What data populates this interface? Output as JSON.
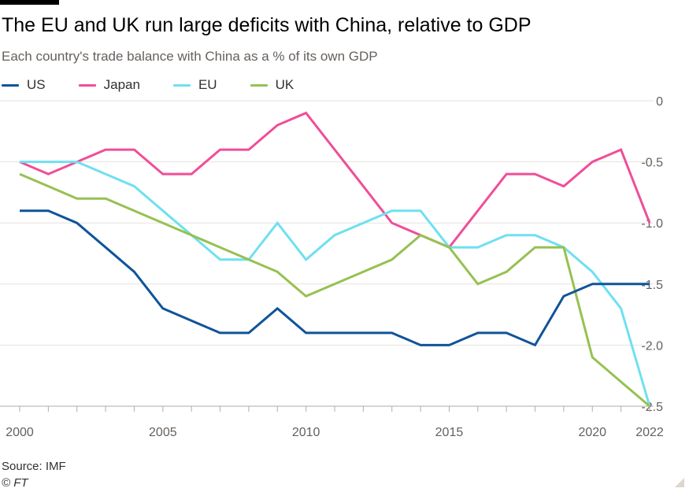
{
  "header": {
    "title": "The EU and UK run large deficits with China, relative to GDP",
    "subtitle": "Each country's trade balance with China as a % of its own GDP"
  },
  "footer": {
    "source": "Source: IMF",
    "credit": "© FT"
  },
  "colors": {
    "US": "#0f5499",
    "Japan": "#f04e98",
    "EU": "#6fe0f0",
    "UK": "#96c152",
    "grid": "#e6e2dd",
    "axis": "#66605c"
  },
  "chart_data": {
    "type": "line",
    "title": "The EU and UK run large deficits with China, relative to GDP",
    "subtitle": "Each country's trade balance with China as a % of its own GDP",
    "xlabel": "",
    "ylabel": "",
    "x": [
      2000,
      2001,
      2002,
      2003,
      2004,
      2005,
      2006,
      2007,
      2008,
      2009,
      2010,
      2011,
      2012,
      2013,
      2014,
      2015,
      2016,
      2017,
      2018,
      2019,
      2020,
      2021,
      2022
    ],
    "xlim": [
      2000,
      2022
    ],
    "ylim": [
      -2.5,
      0
    ],
    "x_tick_labels": [
      {
        "value": 2000,
        "label": "2000"
      },
      {
        "value": 2005,
        "label": "2005"
      },
      {
        "value": 2010,
        "label": "2010"
      },
      {
        "value": 2015,
        "label": "2015"
      },
      {
        "value": 2020,
        "label": "2020"
      },
      {
        "value": 2022,
        "label": "2022"
      }
    ],
    "y_ticks": [
      {
        "value": 0,
        "label": "0"
      },
      {
        "value": -0.5,
        "label": "-0.5"
      },
      {
        "value": -1.0,
        "label": "-1.0"
      },
      {
        "value": -1.5,
        "label": "-1.5"
      },
      {
        "value": -2.0,
        "label": "-2.0"
      },
      {
        "value": -2.5,
        "label": "-2.5"
      }
    ],
    "grid": true,
    "legend_position": "top-left",
    "series": [
      {
        "name": "US",
        "values": [
          -0.9,
          -0.9,
          -1.0,
          -1.2,
          -1.4,
          -1.7,
          -1.8,
          -1.9,
          -1.9,
          -1.7,
          -1.9,
          -1.9,
          -1.9,
          -1.9,
          -2.0,
          -2.0,
          -1.9,
          -1.9,
          -2.0,
          -1.6,
          -1.5,
          -1.5,
          -1.5
        ]
      },
      {
        "name": "Japan",
        "values": [
          -0.5,
          -0.6,
          -0.5,
          -0.4,
          -0.4,
          -0.6,
          -0.6,
          -0.4,
          -0.4,
          -0.2,
          -0.1,
          -0.4,
          -0.7,
          -1.0,
          -1.1,
          -1.2,
          -0.9,
          -0.6,
          -0.6,
          -0.7,
          -0.5,
          -0.4,
          -1.0
        ]
      },
      {
        "name": "EU",
        "values": [
          -0.5,
          -0.5,
          -0.5,
          -0.6,
          -0.7,
          -0.9,
          -1.1,
          -1.3,
          -1.3,
          -1.0,
          -1.3,
          -1.1,
          -1.0,
          -0.9,
          -0.9,
          -1.2,
          -1.2,
          -1.1,
          -1.1,
          -1.2,
          -1.4,
          -1.7,
          -2.5
        ]
      },
      {
        "name": "UK",
        "values": [
          -0.6,
          -0.7,
          -0.8,
          -0.8,
          -0.9,
          -1.0,
          -1.1,
          -1.2,
          -1.3,
          -1.4,
          -1.6,
          -1.5,
          -1.4,
          -1.3,
          -1.1,
          -1.2,
          -1.5,
          -1.4,
          -1.2,
          -1.2,
          -2.1,
          -2.3,
          -2.5
        ]
      }
    ]
  }
}
